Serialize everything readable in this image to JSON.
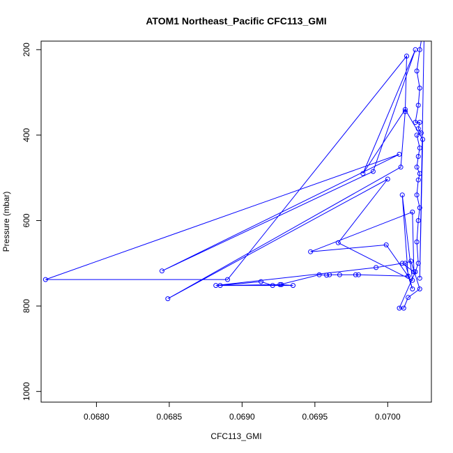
{
  "chart_data": {
    "type": "line",
    "title": "ATOM1 Northeast_Pacific CFC113_GMI",
    "xlabel": "CFC113_GMI",
    "ylabel": "Pressure (mbar)",
    "xlim": [
      0.06762,
      0.0703
    ],
    "ylim": [
      1025,
      180
    ],
    "y_reversed": true,
    "x_ticks": [
      0.068,
      0.0685,
      0.069,
      0.0695,
      0.07
    ],
    "x_tick_labels": [
      "0.0680",
      "0.0685",
      "0.0690",
      "0.0695",
      "0.0700"
    ],
    "y_ticks": [
      200,
      400,
      600,
      800,
      1000
    ],
    "y_tick_labels": [
      "200",
      "400",
      "600",
      "800",
      "1000"
    ],
    "grid": false,
    "colors": {
      "series": "#0000ff",
      "axis": "#000000",
      "background": "#ffffff"
    },
    "series": [
      {
        "values_xy": [
          [
            0.07025,
            160
          ],
          [
            0.07022,
            735
          ],
          [
            0.07024,
            410
          ],
          [
            0.07012,
            340
          ],
          [
            0.06983,
            490
          ],
          [
            0.07019,
            200
          ],
          [
            0.0699,
            485
          ],
          [
            0.06845,
            718
          ],
          [
            0.07008,
            445
          ],
          [
            0.06765,
            738
          ],
          [
            0.0689,
            738
          ],
          [
            0.07013,
            215
          ],
          [
            0.07012,
            345
          ],
          [
            0.07009,
            475
          ],
          [
            0.06849,
            783
          ],
          [
            0.07,
            503
          ],
          [
            0.06966,
            652
          ],
          [
            0.07017,
            740
          ],
          [
            0.0701,
            540
          ],
          [
            0.07014,
            730
          ],
          [
            0.06999,
            657
          ],
          [
            0.06947,
            673
          ],
          [
            0.07017,
            580
          ],
          [
            0.07018,
            720
          ],
          [
            0.0701,
            700
          ],
          [
            0.06992,
            710
          ],
          [
            0.06882,
            752
          ],
          [
            0.06935,
            752
          ],
          [
            0.06927,
            750
          ],
          [
            0.06921,
            752
          ],
          [
            0.06913,
            743
          ],
          [
            0.06885,
            752
          ],
          [
            0.06926,
            750
          ],
          [
            0.06953,
            727
          ],
          [
            0.06958,
            728
          ],
          [
            0.0696,
            727
          ],
          [
            0.06967,
            727
          ],
          [
            0.06978,
            727
          ],
          [
            0.0698,
            727
          ],
          [
            0.07014,
            730
          ],
          [
            0.07017,
            760
          ],
          [
            0.07012,
            700
          ],
          [
            0.07016,
            695
          ],
          [
            0.07022,
            760
          ],
          [
            0.07014,
            780
          ],
          [
            0.07011,
            805
          ],
          [
            0.07008,
            805
          ],
          [
            0.07019,
            720
          ],
          [
            0.07021,
            700
          ],
          [
            0.0702,
            650
          ],
          [
            0.07021,
            600
          ],
          [
            0.07022,
            570
          ],
          [
            0.0702,
            540
          ],
          [
            0.07021,
            505
          ],
          [
            0.07022,
            490
          ],
          [
            0.0702,
            475
          ],
          [
            0.07021,
            450
          ],
          [
            0.07022,
            430
          ],
          [
            0.0702,
            400
          ],
          [
            0.07023,
            395
          ],
          [
            0.07021,
            385
          ],
          [
            0.07022,
            370
          ],
          [
            0.07019,
            370
          ],
          [
            0.07021,
            330
          ],
          [
            0.07022,
            290
          ],
          [
            0.0702,
            250
          ],
          [
            0.07022,
            200
          ],
          [
            0.07024,
            160
          ]
        ]
      }
    ]
  }
}
